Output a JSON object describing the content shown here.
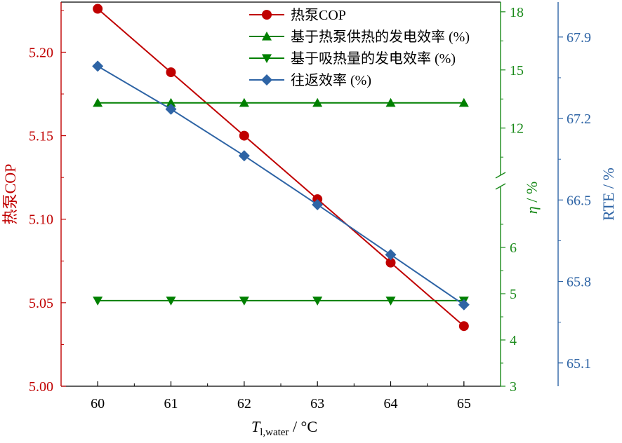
{
  "chart_data": {
    "type": "line",
    "x": [
      60,
      61,
      62,
      63,
      64,
      65
    ],
    "xlabel": {
      "main": "T",
      "sub": "l,water",
      "unit": " / °C"
    },
    "xlim": [
      59.5,
      65.5
    ],
    "xticks": [
      60,
      61,
      62,
      63,
      64,
      65
    ],
    "grid": false,
    "legend_position": "top-center",
    "axes": {
      "left": {
        "label": "热泵COP",
        "ylim": [
          5.0,
          5.23
        ],
        "ticks": [
          5.0,
          5.05,
          5.1,
          5.15,
          5.2
        ],
        "tick_labels": [
          "5.00",
          "5.05",
          "5.10",
          "5.15",
          "5.20"
        ],
        "color": "#c00000"
      },
      "middle": {
        "label_symbol": "η",
        "label_unit": " / %",
        "broken": true,
        "lower_range": [
          3,
          7
        ],
        "lower_ticks": [
          3,
          4,
          5,
          6
        ],
        "upper_range": [
          10,
          18.5
        ],
        "upper_ticks": [
          12,
          15,
          18
        ],
        "color": "#1a8a1a"
      },
      "right": {
        "label": "RTE / %",
        "ylim": [
          64.9,
          68.2
        ],
        "ticks": [
          65.1,
          65.8,
          66.5,
          67.2,
          67.9
        ],
        "tick_labels": [
          "65.1",
          "65.8",
          "66.5",
          "67.2",
          "67.9"
        ],
        "color": "#2e64a5"
      }
    },
    "series": [
      {
        "name": "热泵COP",
        "axis": "left",
        "marker": "circle",
        "color": "#c00000",
        "values": [
          5.226,
          5.188,
          5.15,
          5.112,
          5.074,
          5.036
        ]
      },
      {
        "name": "基于热泵供热的发电效率 (%)",
        "axis": "middle",
        "marker": "triangle-up",
        "color": "#008000",
        "values": [
          13.3,
          13.3,
          13.3,
          13.3,
          13.3,
          13.3
        ]
      },
      {
        "name": "基于吸热量的发电效率 (%)",
        "axis": "middle",
        "marker": "triangle-down",
        "color": "#008000",
        "values": [
          4.85,
          4.85,
          4.85,
          4.85,
          4.85,
          4.85
        ]
      },
      {
        "name": "往返效率 (%)",
        "axis": "right",
        "marker": "diamond",
        "color": "#2e64a5",
        "values": [
          67.65,
          67.28,
          66.88,
          66.46,
          66.03,
          65.6
        ]
      }
    ]
  }
}
